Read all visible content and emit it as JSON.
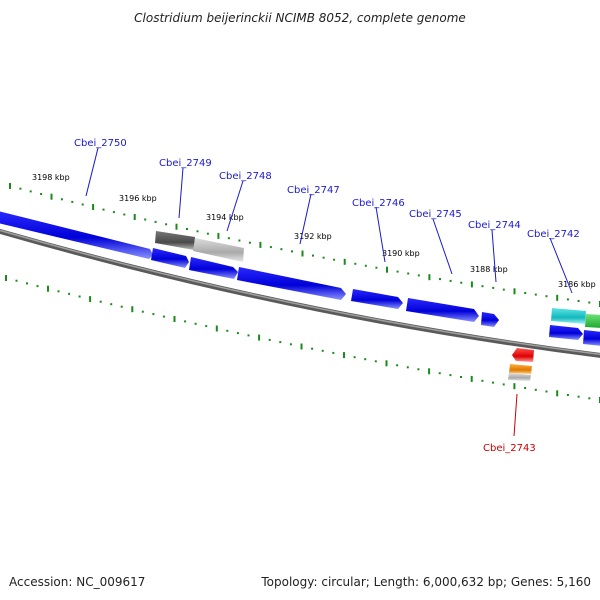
{
  "title": "Clostridium beijerinckii NCIMB 8052, complete genome",
  "footer": {
    "accession": "Accession: NC_009617",
    "summary": "Topology: circular; Length: 6,000,632 bp; Genes: 5,160"
  },
  "colors": {
    "forward_gene": "#1010dd",
    "forward_gene_light": "#7b83ff",
    "label_blue": "#1a1ad0",
    "label_red": "#cc0000",
    "tick_green": "#1a8a1a",
    "backbone": "#777777",
    "pseudo_dark": "#555555",
    "pseudo_light": "#b8b8b8",
    "cyan": "#19c4c8",
    "green": "#2ecc40",
    "red": "#ee1111",
    "orange": "#ee8a10"
  },
  "kbp_ticks": [
    "3198 kbp",
    "3196 kbp",
    "3194 kbp",
    "3192 kbp",
    "3190 kbp",
    "3188 kbp",
    "3186 kbp"
  ],
  "gene_labels": [
    {
      "id": "g2750",
      "text": "Cbei_2750",
      "strand": "plus"
    },
    {
      "id": "g2749",
      "text": "Cbei_2749",
      "strand": "plus"
    },
    {
      "id": "g2748",
      "text": "Cbei_2748",
      "strand": "plus"
    },
    {
      "id": "g2747",
      "text": "Cbei_2747",
      "strand": "plus"
    },
    {
      "id": "g2746",
      "text": "Cbei_2746",
      "strand": "plus"
    },
    {
      "id": "g2745",
      "text": "Cbei_2745",
      "strand": "plus"
    },
    {
      "id": "g2744",
      "text": "Cbei_2744",
      "strand": "plus"
    },
    {
      "id": "g2742",
      "text": "Cbei_2742",
      "strand": "plus"
    },
    {
      "id": "g2743",
      "text": "Cbei_2743",
      "strand": "minus"
    }
  ]
}
